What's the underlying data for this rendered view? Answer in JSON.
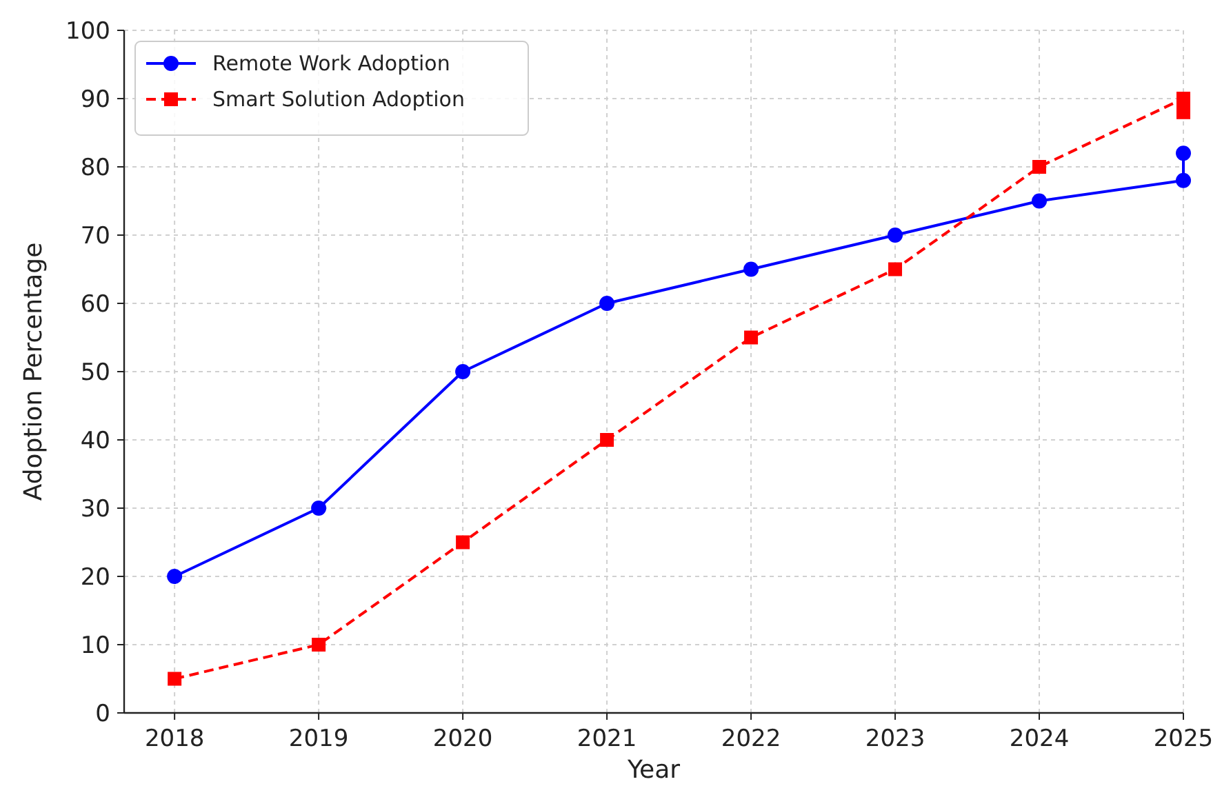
{
  "chart_data": {
    "type": "line",
    "xlabel": "Year",
    "ylabel": "Adoption Percentage",
    "x": [
      2018,
      2019,
      2020,
      2021,
      2022,
      2023,
      2024,
      2025,
      2025
    ],
    "series": [
      {
        "name": "Remote Work Adoption",
        "color": "#0000ff",
        "values": [
          20,
          30,
          50,
          60,
          65,
          70,
          75,
          78,
          82
        ],
        "marker": "circle",
        "line_style": "solid"
      },
      {
        "name": "Smart Solution Adoption",
        "color": "#ff0000",
        "values": [
          5,
          10,
          25,
          40,
          55,
          65,
          80,
          90,
          88
        ],
        "marker": "square",
        "line_style": "dashed"
      }
    ],
    "xlim": [
      2017.65,
      2025.0
    ],
    "xticks": [
      2018,
      2019,
      2020,
      2021,
      2022,
      2023,
      2024,
      2025
    ],
    "ylim": [
      0,
      100
    ],
    "yticks": [
      0,
      10,
      20,
      30,
      40,
      50,
      60,
      70,
      80,
      90,
      100
    ],
    "grid": true,
    "legend": "top left"
  }
}
